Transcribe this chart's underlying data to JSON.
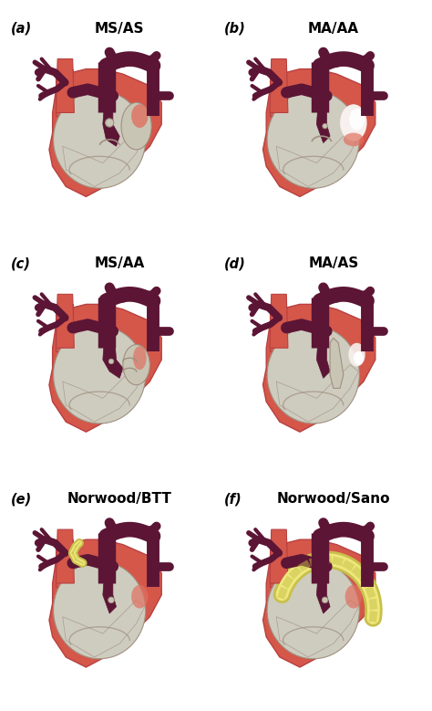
{
  "panels": [
    {
      "label": "(a)",
      "title": "MS/AS",
      "col": 0,
      "row": 0
    },
    {
      "label": "(b)",
      "title": "MA/AA",
      "col": 1,
      "row": 0
    },
    {
      "label": "(c)",
      "title": "MS/AA",
      "col": 0,
      "row": 1
    },
    {
      "label": "(d)",
      "title": "MA/AS",
      "col": 1,
      "row": 1
    },
    {
      "label": "(e)",
      "title": "Norwood/BTT",
      "col": 0,
      "row": 2
    },
    {
      "label": "(f)",
      "title": "Norwood/Sano",
      "col": 1,
      "row": 2
    }
  ],
  "colors": {
    "heart_red": "#D4574A",
    "heart_red_dark": "#B84040",
    "heart_red_light": "#E07060",
    "vessel_dark": "#5C1535",
    "vessel_mid": "#7A2A50",
    "chamber_gray": "#CECCBF",
    "chamber_inner": "#D8D5C8",
    "small_lv_gray": "#C8C5B5",
    "inner_line": "#A09080",
    "shunt_yellow": "#EEE87C",
    "shunt_yellow_dark": "#C8C04A",
    "highlight_pink": "#F0A090",
    "highlight_white": "#F8F0EE",
    "bg": "#FFFFFF"
  },
  "figsize": [
    4.74,
    7.79
  ],
  "dpi": 100
}
